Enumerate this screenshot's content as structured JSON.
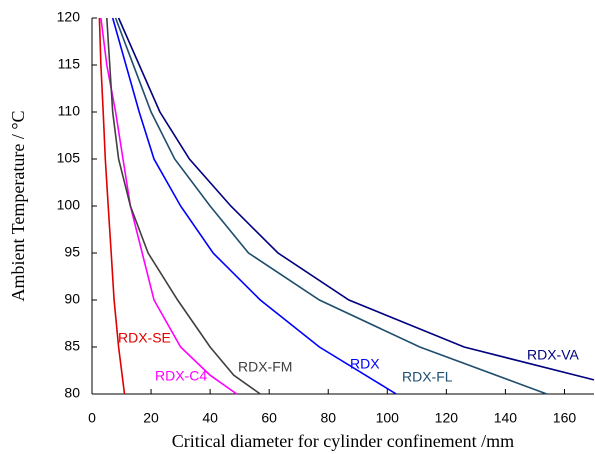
{
  "chart_data": {
    "type": "line",
    "x_label": "Critical diameter for cylinder confinement /mm",
    "y_label": "Ambient Temperature / °C",
    "xlim": [
      0,
      170
    ],
    "ylim": [
      80,
      120
    ],
    "xticks": [
      0,
      20,
      40,
      60,
      80,
      100,
      120,
      140,
      160
    ],
    "yticks": [
      80,
      85,
      90,
      95,
      100,
      105,
      110,
      115,
      120
    ],
    "series": [
      {
        "name": "RDX-SE",
        "color": "#e00000",
        "x": [
          2.5,
          3,
          3.8,
          4.5,
          5.5,
          6.5,
          7.5,
          9,
          11
        ],
        "values": [
          120,
          115,
          110,
          105,
          100,
          95,
          90,
          85,
          80
        ]
      },
      {
        "name": "RDX-C4",
        "color": "#ff00ff",
        "x": [
          3,
          5,
          8,
          10.5,
          13,
          17,
          21,
          30,
          40,
          49
        ],
        "values": [
          120,
          115,
          110,
          105,
          100,
          95,
          90,
          85,
          82,
          80
        ]
      },
      {
        "name": "RDX-FM",
        "color": "#404040",
        "x": [
          5,
          7,
          9,
          13,
          19,
          29,
          40,
          48,
          57
        ],
        "values": [
          120,
          110,
          105,
          100,
          95,
          90,
          85,
          82,
          80
        ]
      },
      {
        "name": "RDX",
        "color": "#0000ff",
        "x": [
          7,
          16,
          21,
          30,
          41,
          57,
          77,
          103
        ],
        "values": [
          120,
          110,
          105,
          100,
          95,
          90,
          85,
          80
        ]
      },
      {
        "name": "RDX-FL",
        "color": "#1f4e6e",
        "x": [
          8,
          20,
          28,
          40,
          53,
          77,
          111,
          154
        ],
        "values": [
          120,
          110,
          105,
          100,
          95,
          90,
          85,
          80
        ]
      },
      {
        "name": "RDX-VA",
        "color": "#000080",
        "x": [
          9,
          23,
          33,
          47,
          63,
          87,
          126,
          170
        ],
        "values": [
          120,
          110,
          105,
          100,
          95,
          90,
          85,
          81.5
        ]
      }
    ]
  }
}
